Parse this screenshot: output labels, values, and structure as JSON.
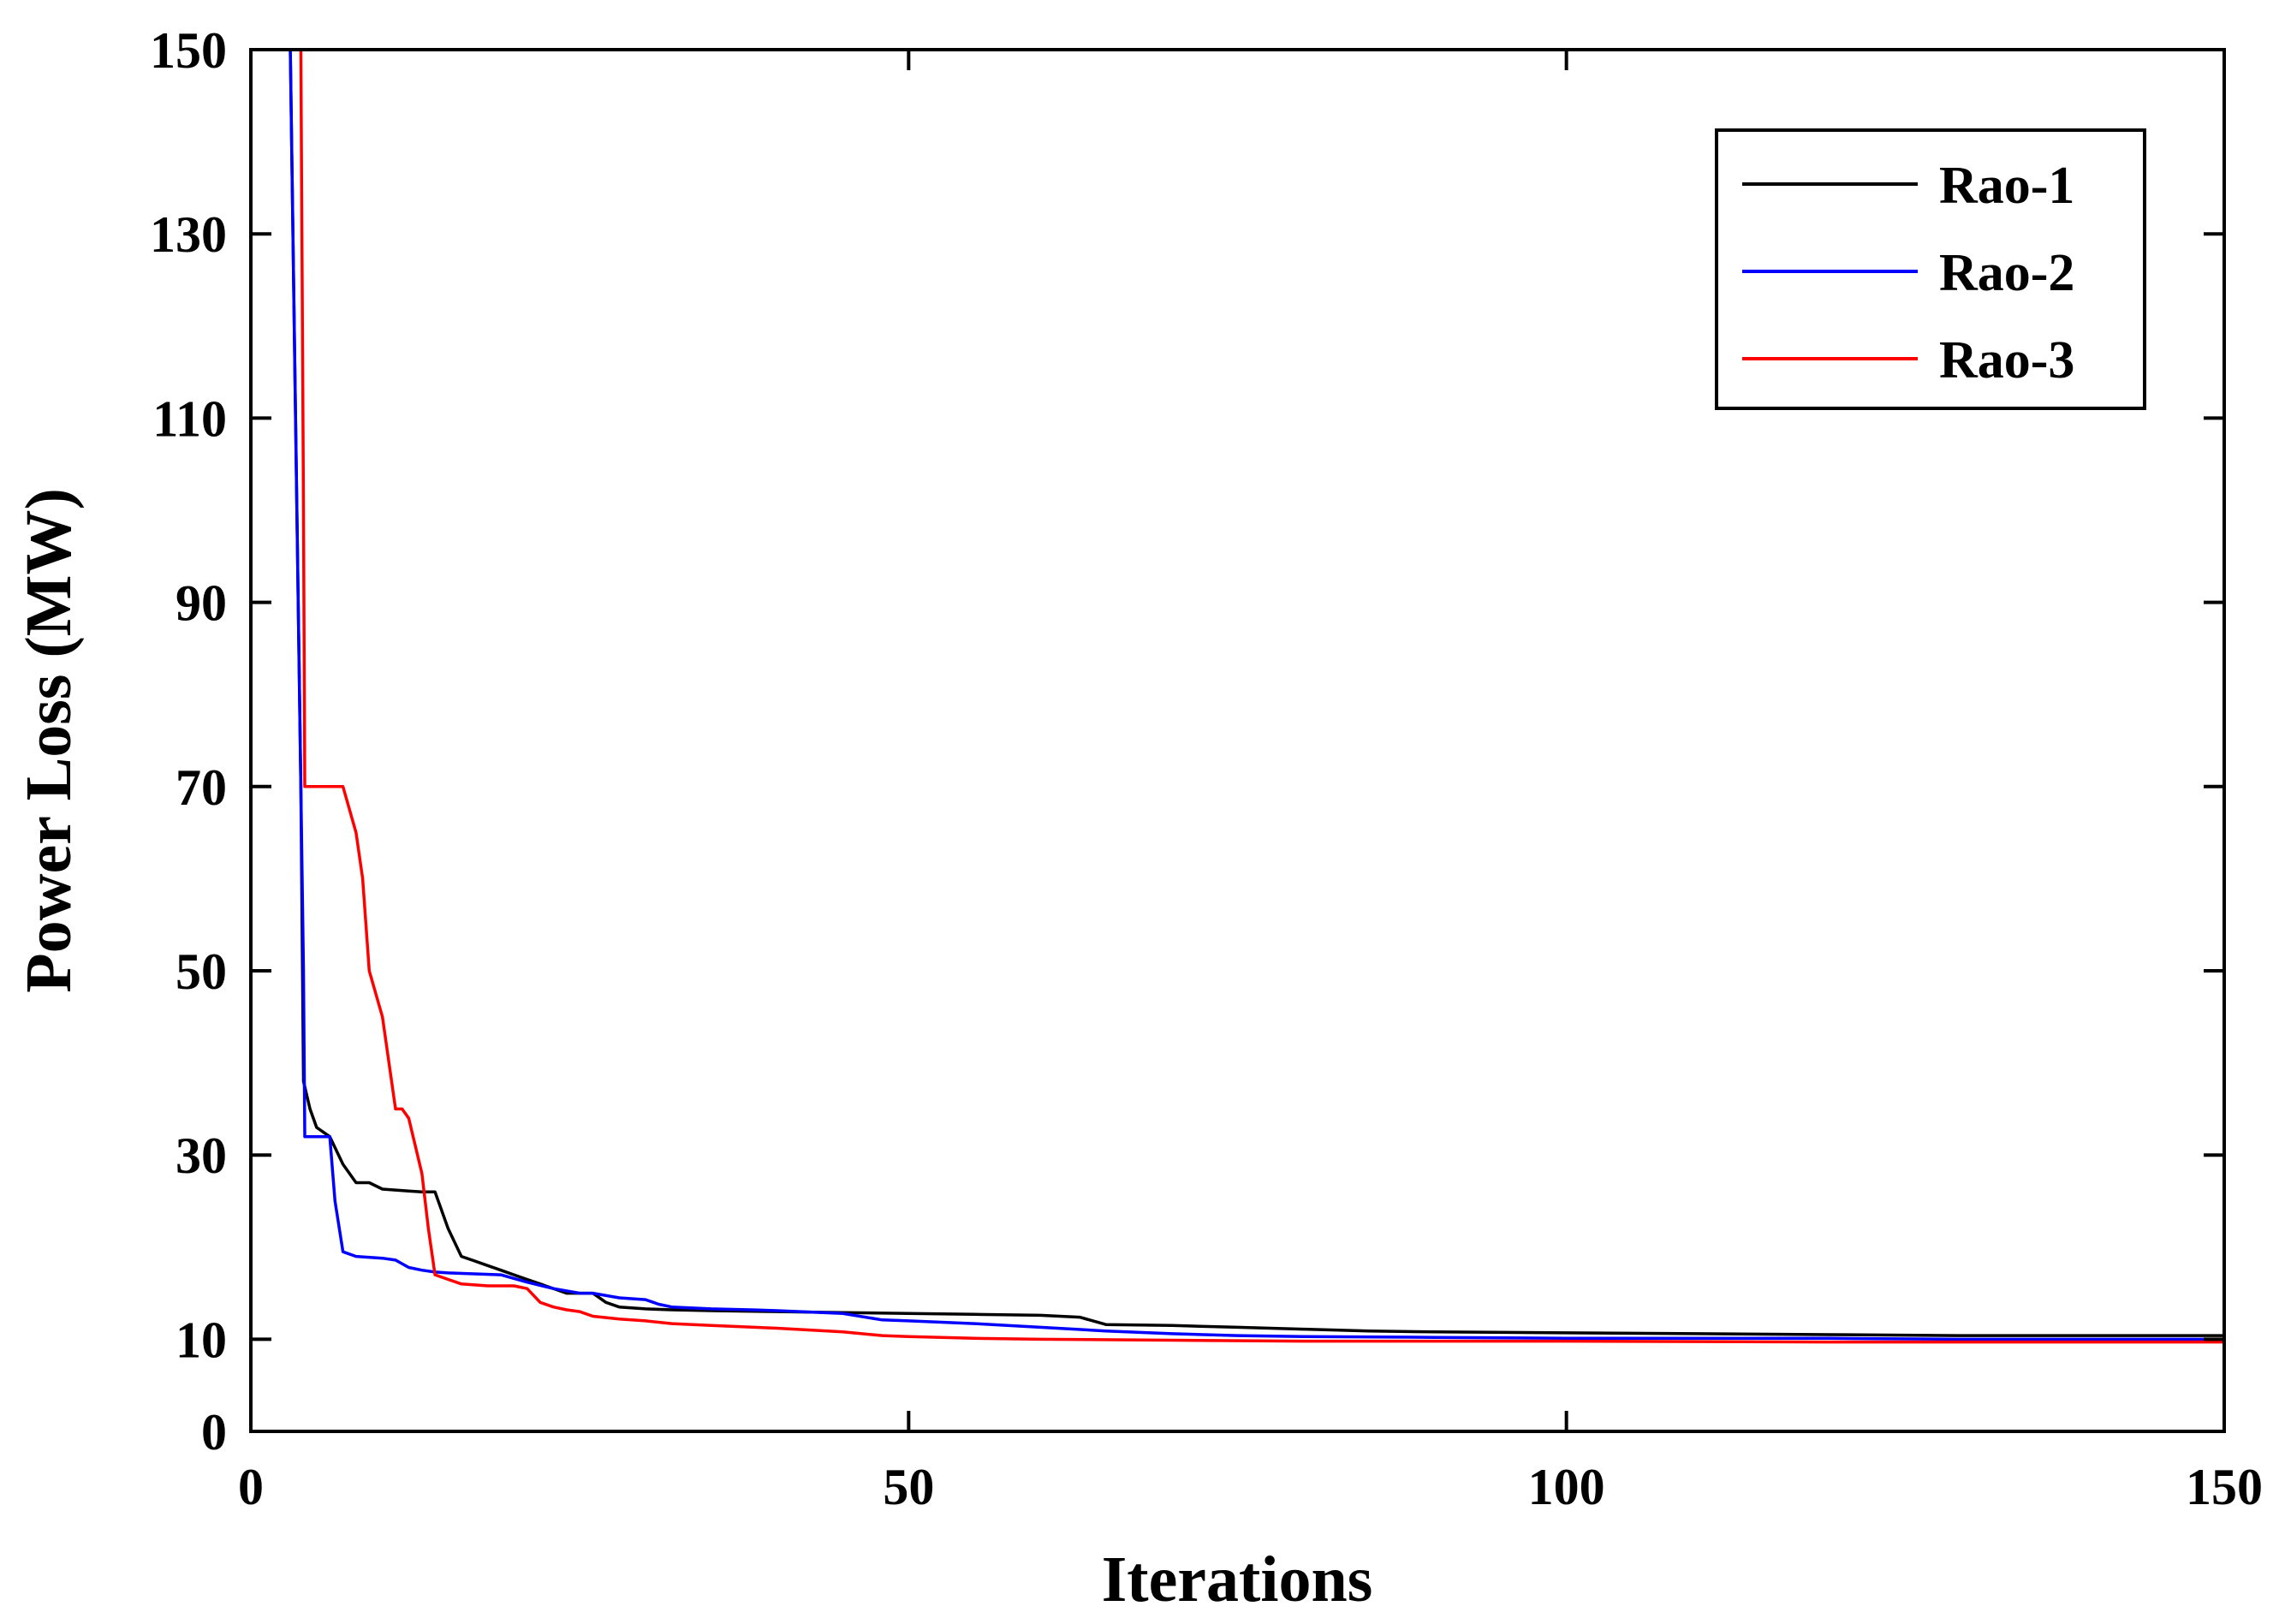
{
  "chart_data": {
    "type": "line",
    "title": "",
    "xlabel": "Iterations",
    "ylabel": "Power Loss (MW)",
    "xlim": [
      0,
      150
    ],
    "ylim": [
      0,
      150
    ],
    "xticks": [
      0,
      50,
      100,
      150
    ],
    "yticks": [
      0,
      10,
      30,
      50,
      70,
      90,
      110,
      130,
      150
    ],
    "grid": false,
    "legend_position": "top-right",
    "series": [
      {
        "name": "Rao-1",
        "color": "#000000",
        "x": [
          3,
          3.4,
          3.8,
          4,
          4.5,
          5,
          6,
          7,
          8,
          9,
          10,
          11,
          12,
          13,
          14,
          15,
          16,
          17,
          18,
          19,
          20,
          21,
          22,
          24,
          26,
          27,
          28,
          30,
          32,
          35,
          40,
          45,
          50,
          55,
          60,
          63,
          65,
          70,
          75,
          80,
          85,
          90,
          100,
          110,
          120,
          130,
          140,
          150
        ],
        "y": [
          150,
          110,
          70,
          38,
          35,
          33,
          32,
          29,
          27,
          27,
          26.3,
          26.2,
          26.1,
          26,
          26,
          22,
          19,
          18.5,
          18,
          17.5,
          17,
          16.5,
          16,
          15,
          15,
          14,
          13.5,
          13.3,
          13.2,
          13.1,
          13,
          12.9,
          12.8,
          12.7,
          12.6,
          12.4,
          11.6,
          11.5,
          11.3,
          11.1,
          10.9,
          10.8,
          10.7,
          10.6,
          10.5,
          10.4,
          10.4,
          10.4
        ]
      },
      {
        "name": "Rao-2",
        "color": "#0000ff",
        "x": [
          3,
          3.5,
          4,
          4.1,
          5,
          6,
          6.4,
          7,
          8,
          10,
          11,
          12,
          13,
          14,
          15,
          17,
          19,
          21,
          23,
          25,
          26,
          28,
          30,
          31,
          32,
          35,
          38,
          40,
          45,
          48,
          50,
          55,
          60,
          65,
          70,
          75,
          80,
          90,
          100,
          110,
          120,
          130,
          150
        ],
        "y": [
          150,
          100,
          50,
          32,
          32,
          32,
          25,
          19.5,
          19,
          18.8,
          18.6,
          17.8,
          17.5,
          17.3,
          17.2,
          17.1,
          17,
          16.2,
          15.5,
          15,
          15,
          14.5,
          14.3,
          13.8,
          13.5,
          13.3,
          13.2,
          13.1,
          12.8,
          12.1,
          12,
          11.7,
          11.3,
          10.9,
          10.6,
          10.4,
          10.3,
          10.2,
          10.1,
          10.1,
          10.1,
          10.0,
          10.0
        ]
      },
      {
        "name": "Rao-3",
        "color": "#ff0000",
        "x": [
          3.5,
          3.8,
          4,
          4.1,
          5,
          6,
          7,
          8,
          8.5,
          9,
          10,
          11,
          11.5,
          12,
          13,
          13.5,
          14,
          15,
          16,
          18,
          20,
          21,
          22,
          23,
          24,
          25,
          26,
          28,
          30,
          32,
          35,
          40,
          45,
          48,
          50,
          55,
          60,
          70,
          80,
          90,
          100,
          120,
          150
        ],
        "y": [
          150,
          150,
          100,
          70,
          70,
          70,
          70,
          65,
          60,
          50,
          45,
          35,
          35,
          34,
          28,
          22,
          17,
          16.5,
          16,
          15.8,
          15.8,
          15.5,
          14,
          13.5,
          13.2,
          13,
          12.5,
          12.2,
          12,
          11.7,
          11.5,
          11.2,
          10.8,
          10.4,
          10.3,
          10.1,
          10,
          9.9,
          9.8,
          9.8,
          9.8,
          9.7,
          9.7
        ]
      }
    ]
  }
}
